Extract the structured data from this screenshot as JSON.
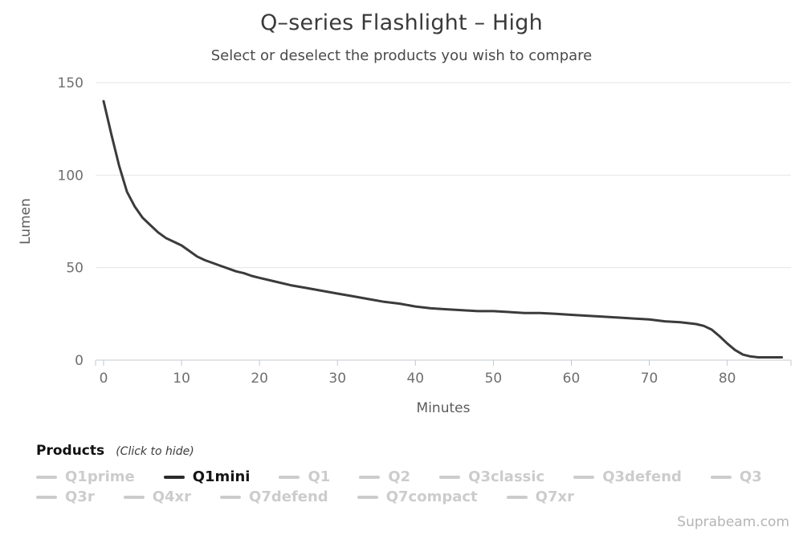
{
  "header": {
    "title": "Q–series Flashlight – High",
    "subtitle": "Select or deselect the products you wish to compare"
  },
  "chart_data": {
    "type": "line",
    "title": "Q–series Flashlight – High",
    "xlabel": "Minutes",
    "ylabel": "Lumen",
    "xlim": [
      0,
      88
    ],
    "ylim": [
      0,
      150
    ],
    "x_ticks": [
      0,
      10,
      20,
      30,
      40,
      50,
      60,
      70,
      80
    ],
    "y_ticks": [
      0,
      50,
      100,
      150
    ],
    "grid": "horizontal",
    "legend_position": "bottom",
    "series": [
      {
        "name": "Q1mini",
        "color": "#3b3b3b",
        "points": [
          [
            0,
            140
          ],
          [
            1,
            122
          ],
          [
            2,
            105
          ],
          [
            3,
            91
          ],
          [
            4,
            83
          ],
          [
            5,
            77
          ],
          [
            6,
            73
          ],
          [
            7,
            69
          ],
          [
            8,
            66
          ],
          [
            9,
            64
          ],
          [
            10,
            62
          ],
          [
            11,
            59
          ],
          [
            12,
            56
          ],
          [
            13,
            54
          ],
          [
            14,
            52.5
          ],
          [
            15,
            51
          ],
          [
            16,
            49.5
          ],
          [
            17,
            48
          ],
          [
            18,
            47
          ],
          [
            19,
            45.5
          ],
          [
            20,
            44.5
          ],
          [
            22,
            42.5
          ],
          [
            24,
            40.5
          ],
          [
            26,
            39
          ],
          [
            28,
            37.5
          ],
          [
            30,
            36
          ],
          [
            32,
            34.5
          ],
          [
            34,
            33
          ],
          [
            36,
            31.5
          ],
          [
            38,
            30.5
          ],
          [
            40,
            29
          ],
          [
            42,
            28
          ],
          [
            44,
            27.5
          ],
          [
            46,
            27
          ],
          [
            48,
            26.5
          ],
          [
            50,
            26.5
          ],
          [
            52,
            26
          ],
          [
            54,
            25.5
          ],
          [
            56,
            25.5
          ],
          [
            58,
            25
          ],
          [
            60,
            24.5
          ],
          [
            62,
            24
          ],
          [
            64,
            23.5
          ],
          [
            66,
            23
          ],
          [
            68,
            22.5
          ],
          [
            70,
            22
          ],
          [
            72,
            21
          ],
          [
            74,
            20.5
          ],
          [
            76,
            19.5
          ],
          [
            77,
            18.5
          ],
          [
            78,
            16.5
          ],
          [
            79,
            13
          ],
          [
            80,
            9
          ],
          [
            81,
            5.5
          ],
          [
            82,
            3
          ],
          [
            83,
            2
          ],
          [
            84,
            1.5
          ],
          [
            85,
            1.5
          ],
          [
            86,
            1.5
          ],
          [
            87,
            1.5
          ]
        ]
      }
    ]
  },
  "legend": {
    "heading": "Products",
    "hint": "(Click to hide)",
    "rows": [
      [
        {
          "label": "Q1prime",
          "active": false
        },
        {
          "label": "Q1mini",
          "active": true
        },
        {
          "label": "Q1",
          "active": false
        },
        {
          "label": "Q2",
          "active": false
        },
        {
          "label": "Q3classic",
          "active": false
        },
        {
          "label": "Q3defend",
          "active": false
        },
        {
          "label": "Q3",
          "active": false
        }
      ],
      [
        {
          "label": "Q3r",
          "active": false
        },
        {
          "label": "Q4xr",
          "active": false
        },
        {
          "label": "Q7defend",
          "active": false
        },
        {
          "label": "Q7compact",
          "active": false
        },
        {
          "label": "Q7xr",
          "active": false
        }
      ]
    ]
  },
  "footer": {
    "watermark": "Suprabeam.com"
  },
  "colors": {
    "title": "#3a3a3a",
    "subtitle": "#4a4a4a",
    "grid": "#e4e4e4",
    "axis": "#c3c8d0",
    "tick_label": "#6f6f6f",
    "axis_title": "#5c5c5c",
    "series": "#3b3b3b",
    "legend_inactive": "#cccccc",
    "legend_active": "#151515",
    "watermark": "#b5b5b5"
  }
}
